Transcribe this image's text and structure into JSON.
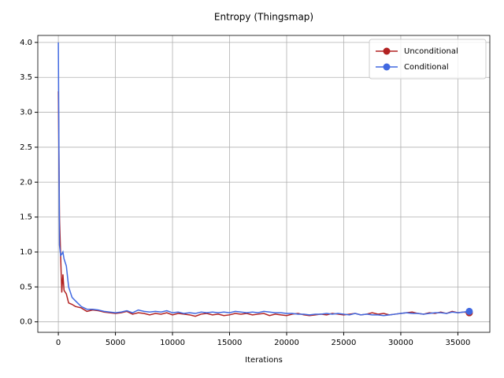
{
  "chart_data": {
    "type": "line",
    "title": "Entropy (Thingsmap)",
    "x_label": "Iterations",
    "x": [
      0,
      100,
      200,
      300,
      400,
      500,
      700,
      900,
      1200,
      1500,
      2000,
      2500,
      3000,
      3500,
      4000,
      4500,
      5000,
      5500,
      6000,
      6500,
      7000,
      7500,
      8000,
      8500,
      9000,
      9500,
      10000,
      10500,
      11000,
      11500,
      12000,
      12500,
      13000,
      13500,
      14000,
      14500,
      15000,
      15500,
      16000,
      16500,
      17000,
      17500,
      18000,
      18500,
      19000,
      19500,
      20000,
      20500,
      21000,
      21500,
      22000,
      22500,
      23000,
      23500,
      24000,
      24500,
      25000,
      25500,
      26000,
      26500,
      27000,
      27500,
      28000,
      28500,
      29000,
      29500,
      30000,
      30500,
      31000,
      31500,
      32000,
      32500,
      33000,
      33500,
      34000,
      34500,
      35000,
      35500,
      36000
    ],
    "series": [
      {
        "name": "Unconditional",
        "color": "#b22222",
        "values": [
          3.3,
          1.5,
          0.95,
          0.42,
          0.68,
          0.45,
          0.4,
          0.27,
          0.25,
          0.22,
          0.2,
          0.15,
          0.17,
          0.16,
          0.14,
          0.13,
          0.12,
          0.13,
          0.15,
          0.11,
          0.13,
          0.12,
          0.1,
          0.12,
          0.11,
          0.13,
          0.1,
          0.12,
          0.11,
          0.1,
          0.08,
          0.11,
          0.12,
          0.1,
          0.11,
          0.09,
          0.1,
          0.12,
          0.11,
          0.12,
          0.1,
          0.11,
          0.12,
          0.09,
          0.11,
          0.1,
          0.09,
          0.11,
          0.12,
          0.1,
          0.09,
          0.1,
          0.11,
          0.1,
          0.12,
          0.11,
          0.1,
          0.11,
          0.12,
          0.1,
          0.11,
          0.13,
          0.11,
          0.12,
          0.1,
          0.11,
          0.12,
          0.13,
          0.14,
          0.12,
          0.11,
          0.13,
          0.12,
          0.14,
          0.12,
          0.15,
          0.13,
          0.14,
          0.13
        ]
      },
      {
        "name": "Conditional",
        "color": "#4169e1",
        "values": [
          4.0,
          1.1,
          0.95,
          0.97,
          1.0,
          0.9,
          0.8,
          0.5,
          0.35,
          0.3,
          0.22,
          0.18,
          0.18,
          0.17,
          0.15,
          0.14,
          0.13,
          0.14,
          0.16,
          0.13,
          0.17,
          0.15,
          0.14,
          0.15,
          0.14,
          0.16,
          0.13,
          0.14,
          0.12,
          0.13,
          0.12,
          0.14,
          0.13,
          0.14,
          0.13,
          0.14,
          0.13,
          0.15,
          0.14,
          0.13,
          0.14,
          0.13,
          0.15,
          0.14,
          0.13,
          0.13,
          0.12,
          0.12,
          0.11,
          0.11,
          0.1,
          0.11,
          0.11,
          0.12,
          0.11,
          0.12,
          0.11,
          0.1,
          0.12,
          0.1,
          0.11,
          0.1,
          0.1,
          0.09,
          0.1,
          0.11,
          0.12,
          0.13,
          0.12,
          0.12,
          0.11,
          0.12,
          0.13,
          0.13,
          0.12,
          0.14,
          0.13,
          0.14,
          0.15
        ]
      }
    ],
    "xlim": [
      -1800,
      37800
    ],
    "ylim": [
      -0.15,
      4.1
    ],
    "xticks": [
      0,
      5000,
      10000,
      15000,
      20000,
      25000,
      30000,
      35000
    ],
    "yticks": [
      {
        "value": 0,
        "label": "0.0"
      },
      {
        "value": 0.5,
        "label": "0.5"
      },
      {
        "value": 1,
        "label": "1.0"
      },
      {
        "value": 1.5,
        "label": "1.5"
      },
      {
        "value": 2,
        "label": "2.0"
      },
      {
        "value": 2.5,
        "label": "2.5"
      },
      {
        "value": 3,
        "label": "3.0"
      },
      {
        "value": 3.5,
        "label": "3.5"
      },
      {
        "value": 4,
        "label": "4.0"
      }
    ],
    "grid": true,
    "legend": "upper right"
  }
}
